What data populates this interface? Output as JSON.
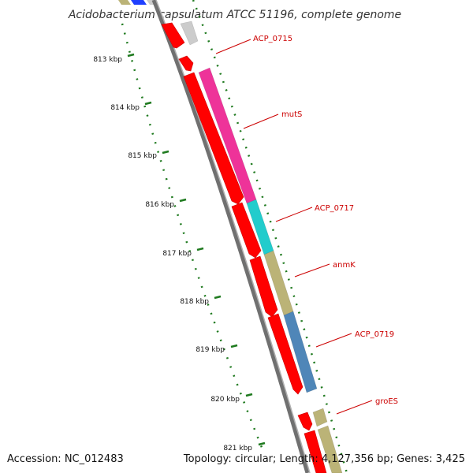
{
  "title": "Acidobacterium capsulatum ATCC 51196, complete genome",
  "footer": {
    "accession": "Accession: NC_012483",
    "topology": "Topology: circular; Length: 4,127,356 bp; Genes: 3,425"
  },
  "colors": {
    "label": "#cc0000",
    "ruler": "#1f7a1f",
    "backbone": "#808080",
    "reverse_cds": "#ff0000"
  },
  "ruler_ticks": [
    {
      "kbp": 813,
      "label": "813 kbp"
    },
    {
      "kbp": 814,
      "label": "814 kbp"
    },
    {
      "kbp": 815,
      "label": "815 kbp"
    },
    {
      "kbp": 816,
      "label": "816 kbp"
    },
    {
      "kbp": 817,
      "label": "817 kbp"
    },
    {
      "kbp": 818,
      "label": "818 kbp"
    },
    {
      "kbp": 819,
      "label": "819 kbp"
    },
    {
      "kbp": 820,
      "label": "820 kbp"
    },
    {
      "kbp": 821,
      "label": "821 kbp"
    }
  ],
  "forward_genes": [
    {
      "id": "ACP_0715",
      "label": "ACP_0715",
      "color": "#cccccc"
    },
    {
      "id": "mutS",
      "label": "mutS",
      "color": "#ee3399"
    },
    {
      "id": "ACP_0717",
      "label": "ACP_0717",
      "color": "#22cccc"
    },
    {
      "id": "anmK",
      "label": "anmK",
      "color": "#bbb377"
    },
    {
      "id": "ACP_0719",
      "label": "ACP_0719",
      "color": "#4f86b8"
    },
    {
      "id": "groES",
      "label": "groES",
      "color": "#bbb377"
    },
    {
      "id": "groEL",
      "label": "",
      "color": "#bbb377"
    }
  ]
}
